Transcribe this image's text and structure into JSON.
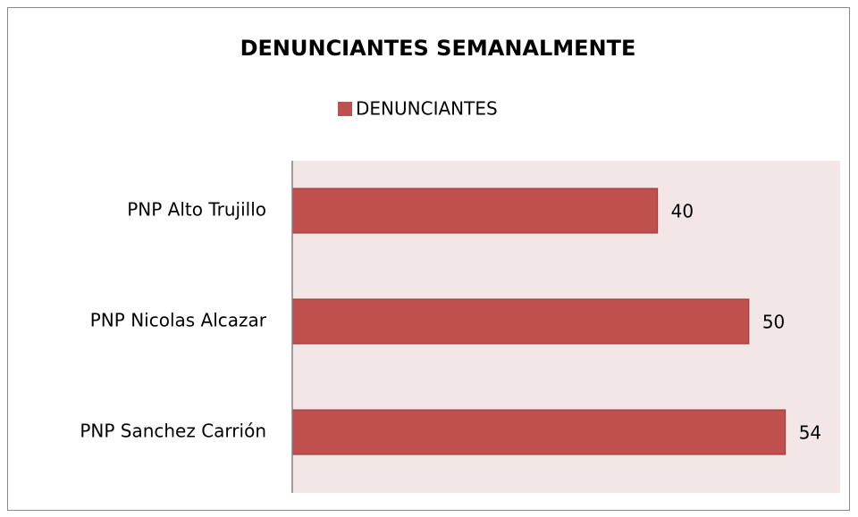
{
  "chart_data": {
    "type": "bar",
    "orientation": "horizontal",
    "title": "DENUNCIANTES  SEMANALMENTE",
    "categories": [
      "PNP Alto Trujillo",
      "PNP Nicolas Alcazar",
      "PNP Sanchez Carrión"
    ],
    "series": [
      {
        "name": "DENUNCIANTES",
        "color": "#c0504d",
        "values": [
          40,
          50,
          54
        ]
      }
    ],
    "xlim": [
      0,
      60
    ],
    "legend": "top"
  }
}
